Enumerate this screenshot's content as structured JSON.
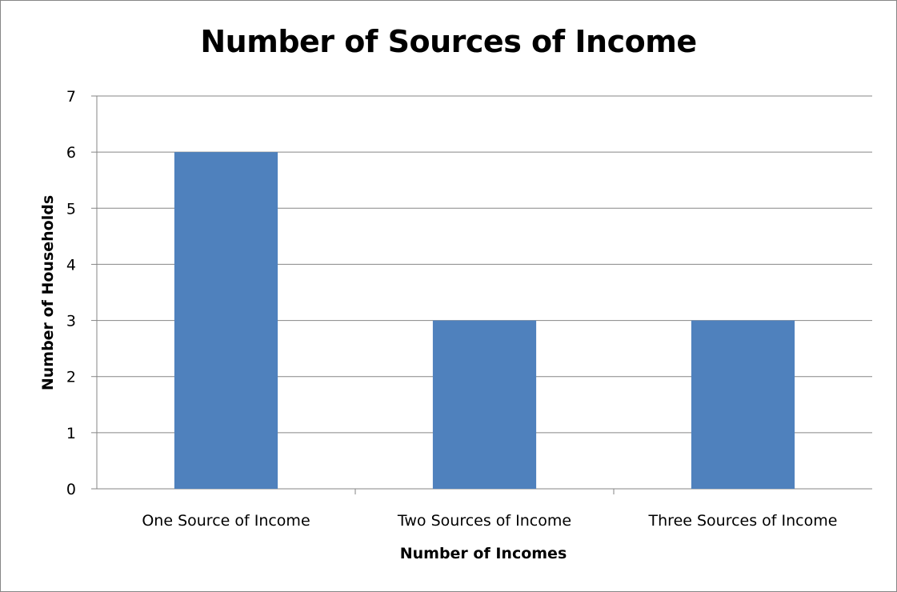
{
  "chart_data": {
    "type": "bar",
    "title": "Number of Sources of Income",
    "xlabel": "Number of Incomes",
    "ylabel": "Number of Households",
    "categories": [
      "One Source of Income",
      "Two Sources of Income",
      "Three Sources of Income"
    ],
    "values": [
      6,
      3,
      3
    ],
    "ylim": [
      0,
      7
    ],
    "yticks": [
      "0",
      "1",
      "2",
      "3",
      "4",
      "5",
      "6",
      "7"
    ],
    "grid": true,
    "legend": "none",
    "colors": {
      "bar": "#4f81bd",
      "gridline": "#868686"
    }
  }
}
